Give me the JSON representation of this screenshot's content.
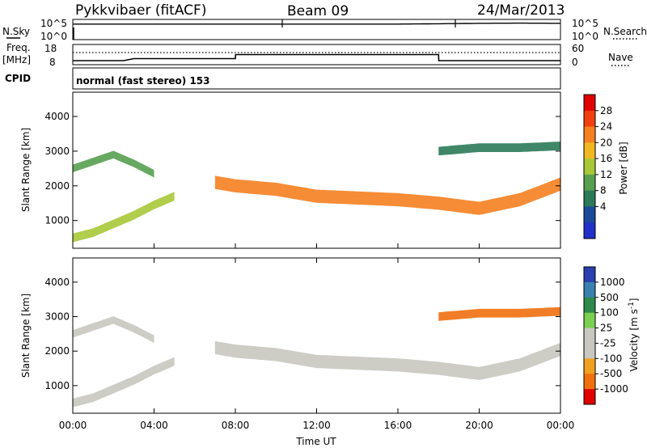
{
  "header": {
    "radar": "Pykkvibaer (fitACF)",
    "beam": "Beam 09",
    "date": "24/Mar/2013"
  },
  "noise_panel": {
    "left_label": "N.Sky",
    "left_ticks": [
      "10^5",
      "10^0"
    ],
    "right_label": "N.Search",
    "right_ticks": [
      "10^5",
      "10^0"
    ]
  },
  "freq_panel": {
    "left_label_1": "Freq.",
    "left_label_2": "[MHz]",
    "left_ticks": [
      "18",
      "8"
    ],
    "right_label": "Nave",
    "right_ticks": [
      "60",
      "0"
    ]
  },
  "cpid": {
    "label": "CPID",
    "text": "normal (fast stereo) 153"
  },
  "axes": {
    "ylabel": "Slant Range [km]",
    "xlabel": "Time UT",
    "y_ticks": [
      "1000",
      "2000",
      "3000",
      "4000"
    ],
    "x_ticks": [
      "00:00",
      "04:00",
      "08:00",
      "12:00",
      "16:00",
      "20:00",
      "00:00"
    ]
  },
  "colorbars": {
    "power": {
      "title": "Power [dB]",
      "labels": [
        "28",
        "24",
        "20",
        "16",
        "12",
        "8",
        "4"
      ],
      "colors": [
        "#e00000",
        "#f04010",
        "#f58020",
        "#f0b820",
        "#a8c838",
        "#58a050",
        "#2a7a58",
        "#1a4a9a",
        "#2030c8"
      ]
    },
    "velocity": {
      "title": "Velocity [m s",
      "title_sup": "-1",
      "title_end": "]",
      "labels": [
        "1000",
        "500",
        "100",
        "25",
        "-25",
        "-100",
        "-500",
        "-1000"
      ],
      "colors": [
        "#2a3fb0",
        "#3a80b0",
        "#2e8a4a",
        "#7ad050",
        "#c8c8c0",
        "#c8c8c0",
        "#f0a020",
        "#f07010",
        "#e00000"
      ]
    }
  },
  "chart_data": [
    {
      "type": "line",
      "title": "N.Sky / N.Search",
      "x": [
        0,
        2,
        4,
        6,
        8,
        10,
        12,
        14,
        16,
        18,
        20,
        22,
        24
      ],
      "series": [
        {
          "values": [
            1.0,
            1.0,
            1.0,
            1.0,
            1.0,
            1.0,
            1.0,
            1.0,
            1.0,
            1.02,
            1.05,
            1.06,
            1.05
          ]
        }
      ],
      "ylim": [
        0,
        1.3
      ]
    },
    {
      "type": "line",
      "title": "Freq / Nave",
      "x": [
        0,
        2.5,
        3.0,
        8.0,
        8.01,
        18.0,
        18.01,
        24
      ],
      "series": [
        {
          "values": [
            10,
            10,
            11,
            11,
            13,
            13,
            10,
            10
          ]
        },
        {
          "values": [
            36,
            36,
            36,
            36,
            36,
            36,
            36,
            36
          ]
        }
      ],
      "ylim": [
        8,
        18
      ]
    },
    {
      "type": "heatmap",
      "title": "Power [dB]",
      "xlabel": "Time UT",
      "ylabel": "Slant Range [km]",
      "xlim": [
        0,
        24
      ],
      "ylim": [
        200,
        4700
      ],
      "bands": [
        {
          "x": [
            0,
            1,
            2,
            3,
            4
          ],
          "center": [
            2500,
            2700,
            2900,
            2650,
            2350
          ],
          "width": 220,
          "power": 12
        },
        {
          "x": [
            0,
            1,
            2,
            3,
            4,
            5
          ],
          "center": [
            500,
            650,
            900,
            1150,
            1450,
            1700
          ],
          "width": 250,
          "power": 16
        },
        {
          "x": [
            7,
            8,
            10,
            12,
            14,
            16,
            18,
            20,
            22,
            24
          ],
          "center": [
            2100,
            2000,
            1900,
            1700,
            1650,
            1600,
            1500,
            1350,
            1600,
            2050
          ],
          "width": 380,
          "power": 22
        },
        {
          "x": [
            18,
            19,
            20,
            22,
            24
          ],
          "center": [
            3000,
            3050,
            3100,
            3100,
            3150
          ],
          "width": 250,
          "power": 8
        }
      ]
    },
    {
      "type": "heatmap",
      "title": "Velocity",
      "xlabel": "Time UT",
      "ylabel": "Slant Range [km]",
      "xlim": [
        0,
        24
      ],
      "ylim": [
        200,
        4700
      ],
      "bands": [
        {
          "x": [
            0,
            1,
            2,
            3,
            4
          ],
          "center": [
            2500,
            2700,
            2900,
            2650,
            2350
          ],
          "width": 220,
          "velocity": 0
        },
        {
          "x": [
            0,
            1,
            2,
            3,
            4,
            5
          ],
          "center": [
            500,
            650,
            900,
            1150,
            1450,
            1700
          ],
          "width": 250,
          "velocity": 0
        },
        {
          "x": [
            7,
            8,
            10,
            12,
            14,
            16,
            18,
            20,
            22,
            24
          ],
          "center": [
            2100,
            2000,
            1900,
            1700,
            1650,
            1600,
            1500,
            1350,
            1600,
            2050
          ],
          "width": 380,
          "velocity": 0
        },
        {
          "x": [
            18,
            19,
            20,
            22,
            24
          ],
          "center": [
            3000,
            3050,
            3100,
            3100,
            3150
          ],
          "width": 250,
          "velocity": -150
        }
      ]
    }
  ]
}
